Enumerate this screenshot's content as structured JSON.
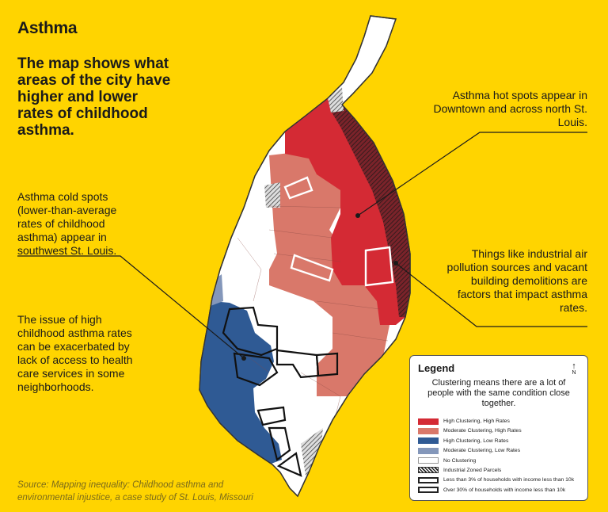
{
  "title": "Asthma",
  "headline": "The map shows what areas of the city have higher and lower rates of childhood asthma.",
  "annotations": {
    "hot_spots": "Asthma hot spots appear in Downtown and across north St. Louis.",
    "cold_spots": "Asthma cold spots (lower-than-average rates of childhood asthma) appear in southwest St. Louis.",
    "factors": "Things like industrial air pollution sources and vacant building demolitions are factors that impact asthma rates.",
    "issue": "The issue of high childhood asthma rates can be exacerbated by lack of access to health care services in some neighborhoods."
  },
  "source": "Source: Mapping inequality: Childhood asthma and environmental injustice, a case study of St. Louis, Missouri",
  "legend": {
    "title": "Legend",
    "north_label": "N",
    "north_icon": "north-arrow-icon",
    "description": "Clustering means there are a lot of people with the same condition close together.",
    "items": [
      {
        "label": "High Clustering, High Rates",
        "color": "#D42A34"
      },
      {
        "label": "Moderate Clustering, High Rates",
        "color": "#D9786A"
      },
      {
        "label": "High Clustering, Low Rates",
        "color": "#2F5A94"
      },
      {
        "label": "Moderate Clustering, Low Rates",
        "color": "#8497BA"
      },
      {
        "label": "No Clustering",
        "color": "#FFFFFF"
      },
      {
        "label": "Industrial Zoned Parcels",
        "color": "#333333"
      },
      {
        "label": "Less than 3% of households with income less than 10k",
        "color": "#222222"
      },
      {
        "label": "Over 30% of households with income less than 10k",
        "color": "#222222"
      }
    ]
  },
  "colors": {
    "background": "#FFD400",
    "high_high": "#D42A34",
    "moderate_high": "#D9786A",
    "high_low": "#2F5A94",
    "moderate_low": "#8497BA",
    "no_clustering": "#FFFFFF"
  }
}
